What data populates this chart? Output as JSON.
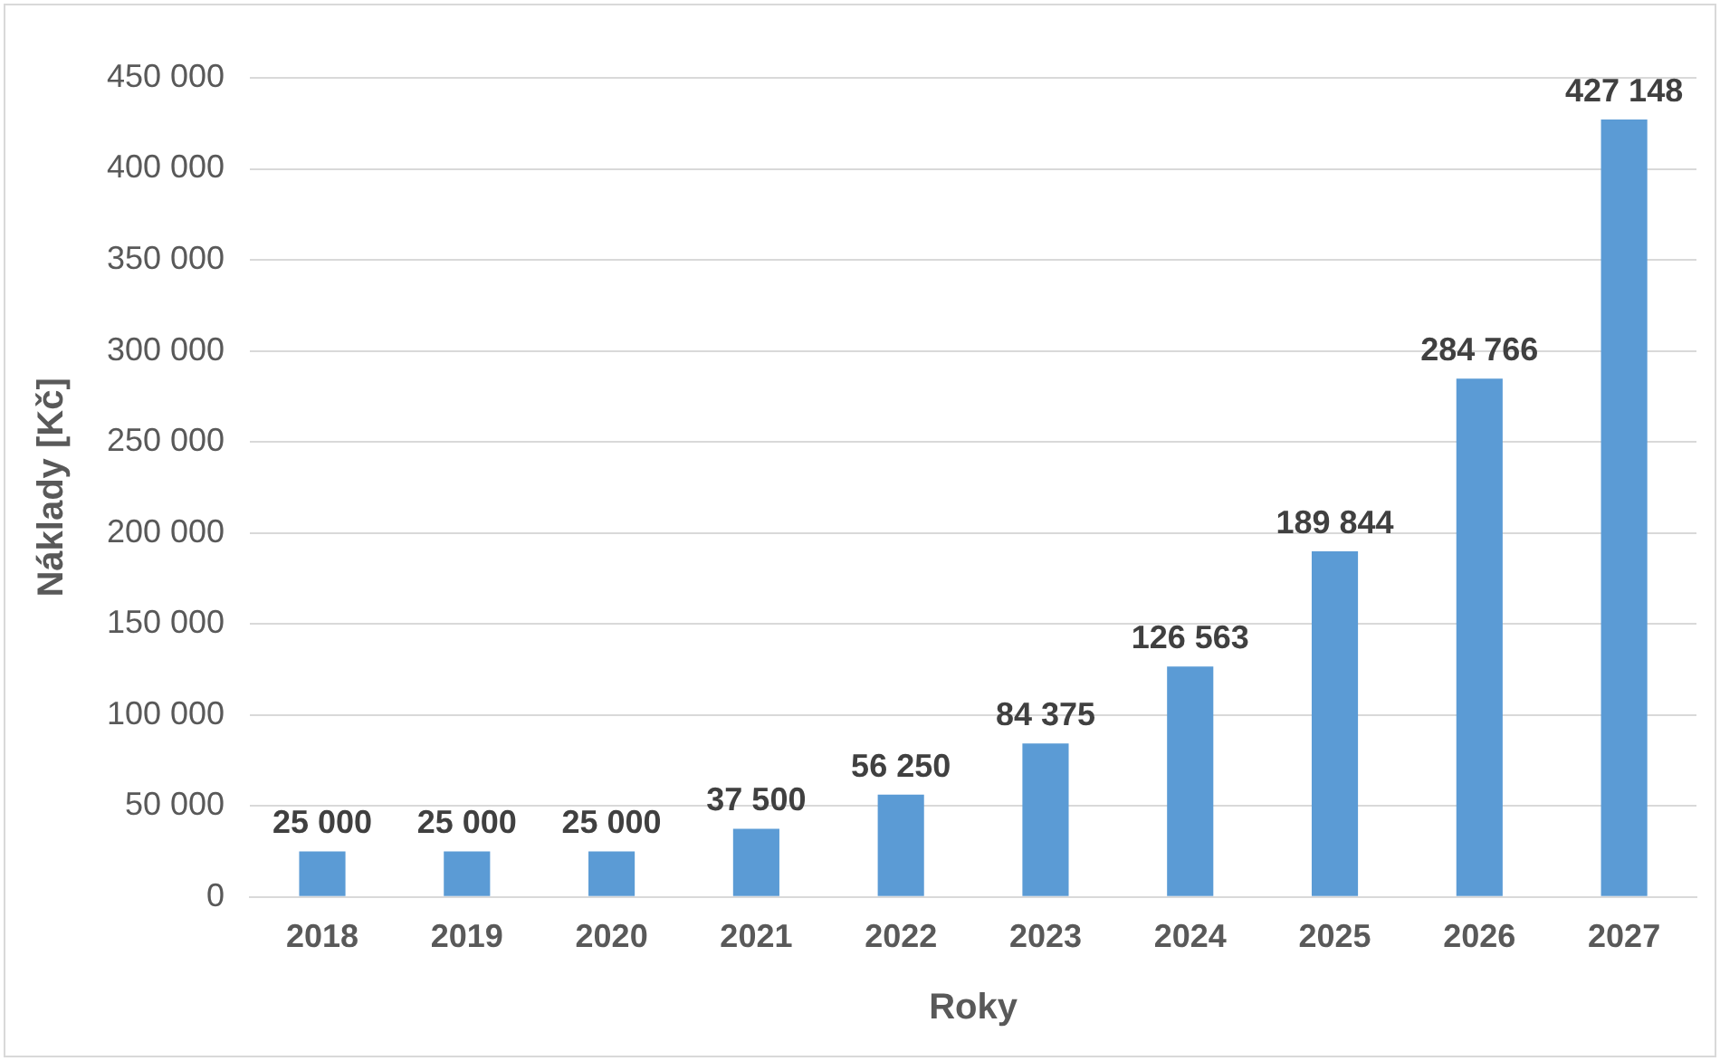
{
  "chart_data": {
    "type": "bar",
    "xlabel": "Roky",
    "ylabel": "Náklady [Kč]",
    "categories": [
      "2018",
      "2019",
      "2020",
      "2021",
      "2022",
      "2023",
      "2024",
      "2025",
      "2026",
      "2027"
    ],
    "values": [
      25000,
      25000,
      25000,
      37500,
      56250,
      84375,
      126563,
      189844,
      284766,
      427148
    ],
    "value_labels": [
      "25 000",
      "25 000",
      "25 000",
      "37 500",
      "56 250",
      "84 375",
      "126 563",
      "189 844",
      "284 766",
      "427 148"
    ],
    "color": "#5b9bd5",
    "ylim": [
      0,
      450000
    ],
    "yticks": [
      {
        "value": 0,
        "label": "0"
      },
      {
        "value": 50000,
        "label": "50 000"
      },
      {
        "value": 100000,
        "label": "100 000"
      },
      {
        "value": 150000,
        "label": "150 000"
      },
      {
        "value": 200000,
        "label": "200 000"
      },
      {
        "value": 250000,
        "label": "250 000"
      },
      {
        "value": 300000,
        "label": "300 000"
      },
      {
        "value": 350000,
        "label": "350 000"
      },
      {
        "value": 400000,
        "label": "400 000"
      },
      {
        "value": 450000,
        "label": "450 000"
      }
    ],
    "grid": "y",
    "legend": false
  }
}
